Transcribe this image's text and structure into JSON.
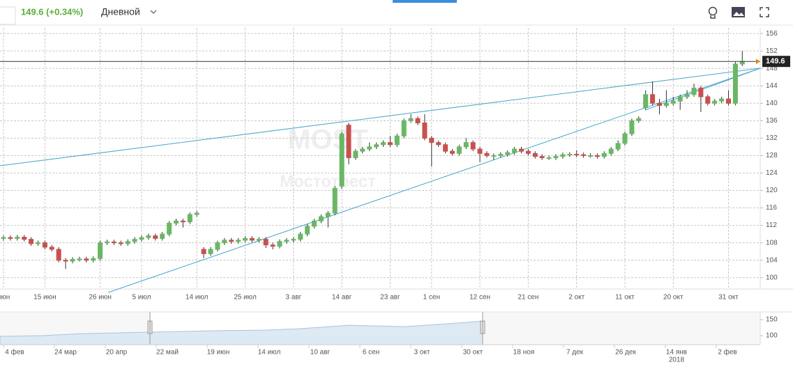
{
  "header": {
    "price_change": "149.6 (+0.34%)",
    "interval": "Дневной"
  },
  "chart_data": {
    "type": "candlestick",
    "watermark": "MOST",
    "watermark_subtitle": "Мостотрест",
    "categories": [
      "июн",
      null,
      null,
      null,
      null,
      null,
      "15 июн",
      null,
      null,
      null,
      null,
      null,
      null,
      null,
      "26 июн",
      null,
      null,
      null,
      null,
      null,
      "5 июл",
      null,
      null,
      null,
      null,
      null,
      null,
      null,
      "14 июл",
      null,
      null,
      null,
      null,
      null,
      null,
      "25 июл",
      null,
      null,
      null,
      null,
      null,
      null,
      "3 авг",
      null,
      null,
      null,
      null,
      null,
      null,
      "14 авг",
      null,
      null,
      null,
      null,
      null,
      null,
      "23 авг",
      null,
      null,
      null,
      null,
      null,
      "1 сен",
      null,
      null,
      null,
      null,
      null,
      null,
      "12 сен",
      null,
      null,
      null,
      null,
      null,
      null,
      "21 сен",
      null,
      null,
      null,
      null,
      null,
      null,
      "2 окт",
      null,
      null,
      null,
      null,
      null,
      null,
      "11 окт",
      null,
      null,
      null,
      null,
      null,
      null,
      "20 окт",
      null,
      null,
      null,
      null,
      null,
      null,
      null,
      "31 окт",
      null,
      null
    ],
    "open": [
      109.0,
      109.2,
      109.0,
      109.3,
      108.8,
      107.8,
      108.0,
      107.0,
      106.5,
      104.0,
      103.8,
      104.2,
      104.3,
      104.0,
      104.4,
      108.0,
      108.2,
      108.0,
      107.8,
      108.3,
      108.8,
      109.2,
      109.6,
      109.0,
      110.0,
      112.5,
      113.0,
      112.8,
      114.5,
      106.5,
      105.5,
      106.5,
      108.0,
      108.6,
      108.3,
      108.6,
      109.0,
      108.6,
      108.8,
      107.5,
      107.2,
      108.3,
      108.6,
      108.8,
      110.0,
      111.8,
      113.0,
      114.0,
      114.8,
      121.0,
      135.0,
      127.5,
      129.0,
      129.5,
      130.0,
      130.5,
      131.0,
      130.5,
      132.5,
      136.0,
      136.5,
      135.5,
      132.0,
      131.0,
      130.5,
      129.0,
      128.5,
      130.0,
      131.0,
      129.5,
      128.5,
      128.0,
      128.0,
      128.3,
      128.7,
      129.5,
      129.0,
      128.5,
      127.8,
      127.5,
      127.5,
      127.8,
      128.2,
      128.3,
      128.2,
      128.0,
      128.0,
      127.8,
      128.5,
      129.5,
      130.8,
      133.0,
      136.0,
      139.0,
      142.0,
      140.0,
      139.5,
      140.0,
      140.5,
      141.5,
      142.0,
      143.5,
      141.5,
      140.0,
      140.5,
      141.0,
      140.0,
      149.0
    ],
    "high": [
      109.7,
      109.7,
      109.8,
      109.8,
      109.3,
      108.5,
      108.5,
      107.5,
      107.0,
      104.5,
      104.7,
      104.8,
      104.8,
      104.9,
      108.5,
      108.7,
      108.7,
      108.5,
      108.8,
      109.3,
      109.7,
      110.1,
      110.1,
      110.5,
      113.0,
      113.5,
      113.5,
      115.0,
      115.3,
      107.0,
      107.0,
      108.5,
      109.1,
      109.1,
      109.1,
      109.5,
      109.5,
      109.3,
      109.3,
      108.0,
      108.8,
      109.1,
      109.3,
      110.5,
      112.3,
      113.5,
      114.5,
      115.3,
      121.0,
      133.5,
      135.5,
      129.5,
      130.0,
      131.0,
      131.0,
      131.5,
      132.5,
      133.0,
      136.5,
      137.5,
      137.0,
      137.5,
      132.5,
      131.5,
      131.0,
      129.5,
      130.5,
      132.0,
      131.5,
      130.0,
      129.0,
      128.5,
      128.8,
      129.2,
      130.0,
      130.0,
      129.5,
      129.0,
      128.3,
      128.0,
      128.3,
      128.7,
      128.8,
      129.2,
      128.7,
      128.5,
      128.5,
      129.0,
      130.0,
      131.5,
      133.5,
      136.5,
      137.0,
      143.0,
      145.0,
      141.0,
      143.0,
      141.5,
      142.0,
      143.0,
      144.5,
      144.0,
      142.0,
      141.0,
      141.5,
      143.0,
      149.5,
      152.0
    ],
    "low": [
      108.5,
      108.5,
      108.5,
      108.3,
      107.3,
      107.3,
      106.5,
      106.0,
      103.5,
      102.0,
      103.3,
      103.7,
      103.5,
      103.5,
      103.9,
      107.5,
      107.5,
      107.3,
      107.3,
      107.8,
      108.3,
      108.7,
      108.5,
      108.5,
      109.5,
      112.0,
      111.5,
      112.3,
      114.0,
      104.5,
      105.0,
      106.0,
      107.5,
      107.8,
      107.8,
      108.1,
      108.1,
      108.1,
      106.8,
      106.5,
      106.7,
      107.8,
      108.1,
      108.3,
      109.5,
      111.3,
      112.5,
      111.5,
      114.3,
      120.5,
      126.0,
      127.0,
      128.5,
      129.0,
      129.5,
      130.0,
      130.0,
      130.0,
      132.0,
      135.5,
      135.0,
      131.5,
      125.5,
      130.0,
      128.5,
      128.0,
      128.0,
      129.5,
      129.0,
      126.5,
      127.5,
      127.0,
      127.5,
      127.8,
      128.2,
      128.5,
      128.0,
      127.3,
      127.0,
      127.0,
      127.0,
      127.3,
      127.7,
      127.7,
      127.5,
      127.5,
      127.3,
      127.3,
      128.0,
      129.0,
      130.3,
      132.5,
      135.5,
      138.5,
      139.5,
      137.5,
      139.0,
      139.5,
      138.5,
      141.0,
      141.5,
      138.0,
      139.5,
      139.5,
      140.0,
      139.5,
      139.5,
      148.5
    ],
    "close": [
      109.2,
      109.0,
      109.3,
      108.8,
      107.8,
      108.0,
      107.0,
      106.5,
      104.0,
      103.8,
      104.2,
      104.3,
      104.0,
      104.4,
      108.0,
      108.2,
      108.0,
      107.8,
      108.3,
      108.8,
      109.2,
      109.6,
      109.0,
      110.0,
      112.5,
      113.0,
      112.8,
      114.5,
      114.8,
      105.5,
      106.5,
      108.0,
      108.6,
      108.3,
      108.6,
      109.0,
      108.6,
      108.8,
      107.5,
      107.2,
      108.3,
      108.6,
      108.8,
      110.0,
      111.8,
      113.0,
      114.0,
      114.8,
      120.5,
      133.0,
      127.5,
      129.0,
      129.5,
      130.0,
      130.5,
      131.0,
      130.5,
      132.5,
      136.0,
      136.5,
      135.5,
      132.0,
      131.0,
      130.5,
      129.0,
      128.5,
      130.0,
      131.0,
      129.5,
      128.5,
      128.0,
      128.0,
      128.3,
      128.7,
      129.5,
      129.0,
      128.5,
      127.8,
      127.5,
      127.5,
      127.8,
      128.2,
      128.3,
      128.2,
      128.0,
      128.0,
      127.8,
      128.5,
      129.5,
      130.8,
      133.0,
      136.0,
      136.5,
      142.0,
      140.0,
      139.5,
      140.0,
      140.5,
      141.5,
      142.0,
      143.5,
      141.5,
      140.0,
      140.5,
      141.0,
      140.0,
      149.0,
      149.6
    ],
    "colors": {
      "up": "#69b764",
      "down": "#c9504e"
    },
    "last_price": 149.6,
    "ylim": [
      97.4,
      157.3
    ],
    "yticks": [
      100,
      104,
      108,
      112,
      116,
      120,
      124,
      128,
      132,
      136,
      140,
      144,
      148,
      152,
      156
    ],
    "grid": true,
    "navigator": {
      "labels": [
        "4 фев",
        "24 мар",
        "20 апр",
        "22 май",
        "19 июн",
        "14 июл",
        "10 авг",
        "6 сен",
        "3 окт",
        "30 окт",
        "18 ноя",
        "7 дек",
        "26 дек",
        "14 янв",
        "2 фев"
      ],
      "year": "2018",
      "ylim": [
        72,
        174
      ],
      "yticks": [
        150,
        100
      ]
    }
  }
}
